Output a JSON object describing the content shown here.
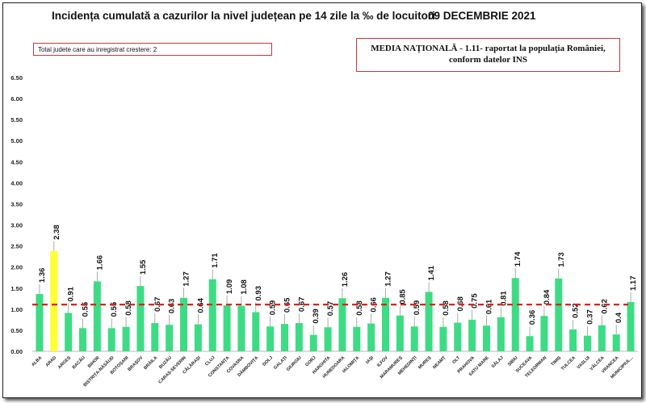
{
  "header": {
    "title": "Incidența cumulată a cazurilor la nivel județean pe 14 zile la ‰ de locuitori",
    "date": "09 DECEMBRIE 2021"
  },
  "info_left": "Total judete care au inregistrat crestere: 2",
  "info_right_line1": "MEDIA NAȚIONALĂ - 1.11-  raportat la populația României,",
  "info_right_line2": "conform datelor INS",
  "colors": {
    "bar": "#3ddc84",
    "highlight": "#ffff33",
    "mean_line": "#d0281e"
  },
  "chart_data": {
    "type": "bar",
    "title": "Incidența cumulată a cazurilor la nivel județean pe 14 zile la ‰ de locuitori",
    "xlabel": "",
    "ylabel": "",
    "ylim": [
      0,
      6.5
    ],
    "yticks": [
      "0.00",
      "0.50",
      "1.00",
      "1.50",
      "2.00",
      "2.50",
      "3.00",
      "3.50",
      "4.00",
      "4.50",
      "5.00",
      "5.50",
      "6.00",
      "6.50"
    ],
    "categories": [
      "ALBA",
      "ARAD",
      "ARGEȘ",
      "BACĂU",
      "BIHOR",
      "BISTRIȚA-NĂSĂUD",
      "BOTOȘANI",
      "BRAȘOV",
      "BRĂILA",
      "BUZĂU",
      "CARAȘ-SEVERIN",
      "CĂLĂRAȘI",
      "CLUJ",
      "CONSTANȚA",
      "COVASNA",
      "DÂMBOVIȚA",
      "DOLJ",
      "GALAȚI",
      "GIURGIU",
      "GORJ",
      "HARGHITA",
      "HUNEDOARA",
      "IALOMIȚA",
      "IAȘI",
      "ILFOV",
      "MARAMUREȘ",
      "MEHEDINȚI",
      "MUREȘ",
      "NEAMȚ",
      "OLT",
      "PRAHOVA",
      "SATU MARE",
      "SĂLAJ",
      "SIBIU",
      "SUCEAVA",
      "TELEORMAN",
      "TIMIȘ",
      "TULCEA",
      "VASLUI",
      "VÂLCEA",
      "VRANCEA",
      "MUNICIPIUL..."
    ],
    "values": [
      1.36,
      2.38,
      0.91,
      0.55,
      1.66,
      0.55,
      0.58,
      1.55,
      0.67,
      0.63,
      1.27,
      0.64,
      1.71,
      1.09,
      1.08,
      0.93,
      0.59,
      0.65,
      0.67,
      0.39,
      0.57,
      1.26,
      0.58,
      0.66,
      1.27,
      0.85,
      0.59,
      1.41,
      0.58,
      0.68,
      0.75,
      0.61,
      0.81,
      1.74,
      0.36,
      0.84,
      1.73,
      0.52,
      0.37,
      0.62,
      0.4,
      1.17
    ],
    "labels": [
      "1.36",
      "2.38",
      "0.91",
      "0.55",
      "1.66",
      "0.55",
      "0.58",
      "1.55",
      "0.67",
      "0.63",
      "1.27",
      "0.64",
      "1.71",
      "1.09",
      "1.08",
      "0.93",
      "0.59",
      "0.65",
      "0.67",
      "0.39",
      "0.57",
      "1.26",
      "0.58",
      "0.66",
      "1.27",
      "0.85",
      "0.59",
      "1.41",
      "0.58",
      "0.68",
      "0.75",
      "0.61",
      "0.81",
      "1.74",
      "0.36",
      "0.84",
      "1.73",
      "0.52",
      "0.37",
      "0.62",
      "0.4",
      "1.17"
    ],
    "highlight": [
      "ARAD"
    ],
    "mean_line": {
      "value": 1.11,
      "style": "dashed"
    },
    "grid": false
  }
}
